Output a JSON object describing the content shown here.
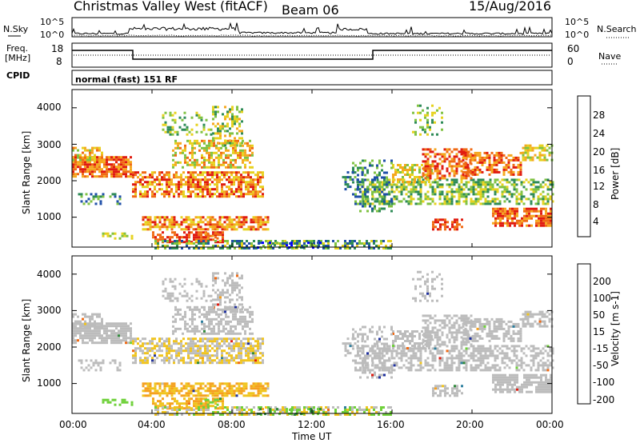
{
  "header": {
    "station": "Christmas Valley West (fitACF)",
    "beam": "Beam 06",
    "date": "15/Aug/2016"
  },
  "top_panels": {
    "nsky_label": "N.Sky",
    "nsearch_label": "N.Search",
    "nsky_ticks": [
      "10^5",
      "10^0"
    ],
    "nsearch_ticks": [
      "10^5",
      "10^0"
    ],
    "freq_label": "Freq.",
    "freq_unit": "[MHz]",
    "freq_ticks": [
      "18",
      "8"
    ],
    "nave_label": "Nave",
    "nave_ticks": [
      "60",
      "0"
    ],
    "cpid_label": "CPID",
    "cpid_value": "normal (fast) 151 RF"
  },
  "chart_data": [
    {
      "type": "heatmap",
      "name": "power",
      "ylabel": "Slant Range [km]",
      "xlabel": "",
      "x_range_hours": [
        0,
        24
      ],
      "ylim": [
        180,
        4500
      ],
      "yticks": [
        "1000",
        "2000",
        "3000",
        "4000"
      ],
      "colorbar": {
        "label": "Power [dB]",
        "ticks": [
          "28",
          "24",
          "20",
          "16",
          "12",
          "8",
          "4"
        ],
        "colors": [
          "#0000ff",
          "#1f4fa8",
          "#2e8b57",
          "#7fc242",
          "#e6d21e",
          "#f5a81e",
          "#f06a14",
          "#e01b10"
        ]
      }
    },
    {
      "type": "heatmap",
      "name": "velocity",
      "ylabel": "Slant Range [km]",
      "xlabel": "Time UT",
      "x_range_hours": [
        0,
        24
      ],
      "ylim": [
        180,
        4500
      ],
      "yticks": [
        "1000",
        "2000",
        "3000",
        "4000"
      ],
      "xticks": [
        "00:00",
        "04:00",
        "08:00",
        "12:00",
        "16:00",
        "20:00",
        "00:00"
      ],
      "colorbar": {
        "label": "Velocity [m s-1]",
        "ticks": [
          "200",
          "100",
          "50",
          "15",
          "-15",
          "-50",
          "-100",
          "-200"
        ],
        "colors": [
          "#1e2f9e",
          "#2e7f9e",
          "#2f8a3a",
          "#6fd13a",
          "#bcbcbc",
          "#f0c41e",
          "#f5a01e",
          "#f06a14",
          "#e01b10"
        ]
      }
    }
  ]
}
